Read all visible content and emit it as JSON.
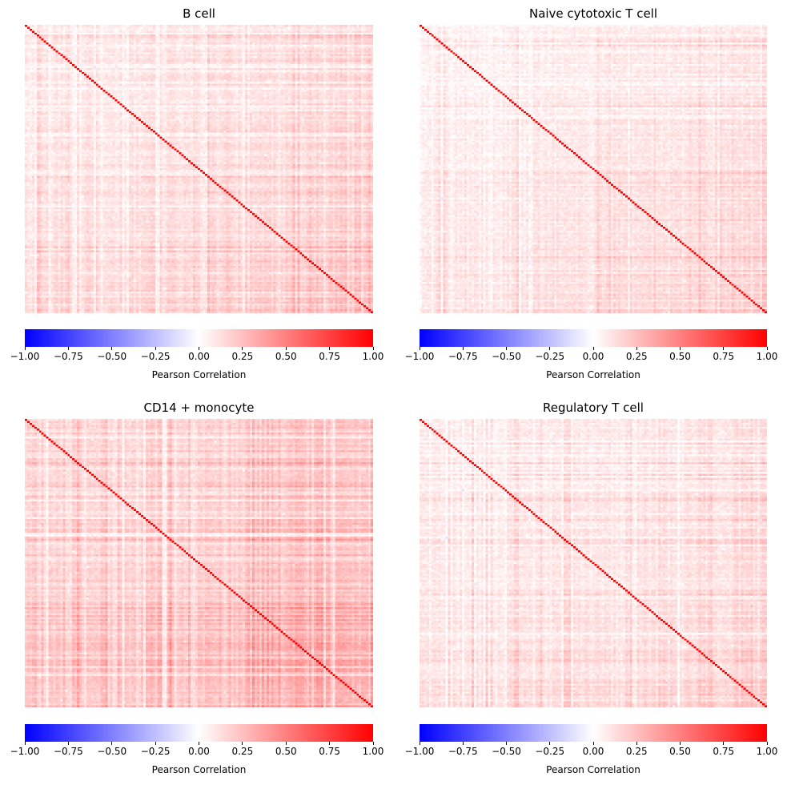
{
  "chart_data": [
    {
      "type": "heatmap",
      "title": "B cell",
      "matrix_size": 147,
      "diagonal_value": 1.0,
      "colormap": [
        "#0000ff",
        "#ffffff",
        "#ff0000"
      ],
      "colorbar": {
        "label": "Pearson Correlation",
        "range": [
          -1.0,
          1.0
        ],
        "ticks": [
          "−1.00",
          "−0.75",
          "−0.50",
          "−0.25",
          "0.00",
          "0.25",
          "0.50",
          "0.75",
          "1.00"
        ]
      },
      "off_diagonal_typical_range": [
        -0.1,
        0.45
      ],
      "axis_ticks": "hidden"
    },
    {
      "type": "heatmap",
      "title": "Naive cytotoxic T cell",
      "matrix_size": 147,
      "diagonal_value": 1.0,
      "colormap": [
        "#0000ff",
        "#ffffff",
        "#ff0000"
      ],
      "colorbar": {
        "label": "Pearson Correlation",
        "range": [
          -1.0,
          1.0
        ],
        "ticks": [
          "−1.00",
          "−0.75",
          "−0.50",
          "−0.25",
          "0.00",
          "0.25",
          "0.50",
          "0.75",
          "1.00"
        ]
      },
      "off_diagonal_typical_range": [
        -0.1,
        0.35
      ],
      "axis_ticks": "hidden"
    },
    {
      "type": "heatmap",
      "title": "CD14 + monocyte",
      "matrix_size": 147,
      "diagonal_value": 1.0,
      "colormap": [
        "#0000ff",
        "#ffffff",
        "#ff0000"
      ],
      "colorbar": {
        "label": "Pearson Correlation",
        "range": [
          -1.0,
          1.0
        ],
        "ticks": [
          "−1.00",
          "−0.75",
          "−0.50",
          "−0.25",
          "0.00",
          "0.25",
          "0.50",
          "0.75",
          "1.00"
        ]
      },
      "off_diagonal_typical_range": [
        -0.05,
        0.6
      ],
      "axis_ticks": "hidden"
    },
    {
      "type": "heatmap",
      "title": "Regulatory T cell",
      "matrix_size": 147,
      "diagonal_value": 1.0,
      "colormap": [
        "#0000ff",
        "#ffffff",
        "#ff0000"
      ],
      "colorbar": {
        "label": "Pearson Correlation",
        "range": [
          -1.0,
          1.0
        ],
        "ticks": [
          "−1.00",
          "−0.75",
          "−0.50",
          "−0.25",
          "0.00",
          "0.25",
          "0.50",
          "0.75",
          "1.00"
        ]
      },
      "off_diagonal_typical_range": [
        -0.1,
        0.35
      ],
      "axis_ticks": "hidden"
    }
  ]
}
